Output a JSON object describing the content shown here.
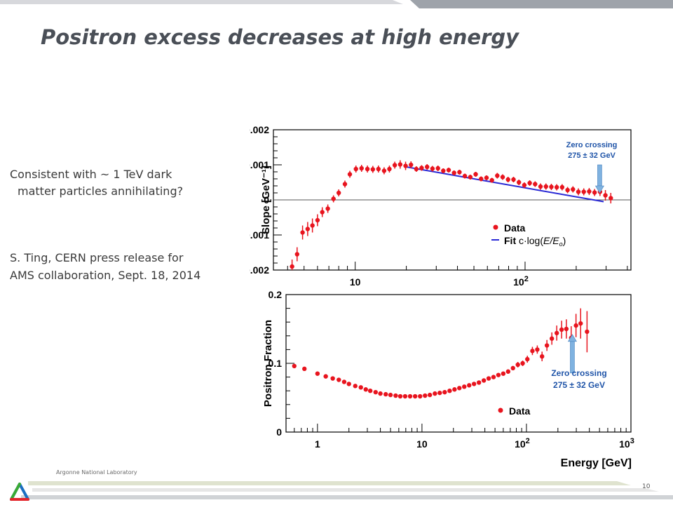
{
  "slide": {
    "title": "Positron excess decreases at high energy",
    "text_lines": [
      "Consistent with ~ 1 TeV dark",
      "matter particles annihilating?",
      "S. Ting, CERN press release for",
      "AMS collaboration, Sept. 18, 2014"
    ],
    "footer": "Argonne National Laboratory",
    "page_number": "10"
  },
  "colors": {
    "data": "#e8141e",
    "fit": "#2a2ad6",
    "arrow": "#7fb2e0",
    "annotation": "#1f54a8",
    "title": "#4a4f57"
  },
  "chart_data": [
    {
      "type": "scatter",
      "title": "",
      "xscale": "log",
      "xlim": [
        3.3,
        420
      ],
      "ylim": [
        -0.002,
        0.002
      ],
      "ylabel": "Slope [GeV⁻¹]",
      "yticks": [
        "0.002",
        "0.001",
        "0",
        "-0.001",
        "-0.002"
      ],
      "xticks": [
        "10",
        "10²"
      ],
      "grid": false,
      "zero_line": true,
      "legend": {
        "placement": "center-right",
        "entries": [
          "Data",
          "Fit c·log(E/E₀)"
        ]
      },
      "fit": {
        "x": [
          20,
          290
        ],
        "y": [
          0.00094,
          -5e-05
        ]
      },
      "annotation": {
        "text": [
          "Zero crossing",
          "275 ± 32 GeV"
        ],
        "arrow_to_x": 275,
        "arrow_to_y": 0.0002
      },
      "series": [
        {
          "name": "Data",
          "x": [
            4.25,
            4.55,
            4.9,
            5.25,
            5.6,
            6.0,
            6.4,
            6.9,
            7.45,
            8.0,
            8.7,
            9.3,
            10.1,
            10.9,
            11.8,
            12.7,
            13.7,
            14.8,
            15.9,
            17.1,
            18.4,
            19.8,
            21.3,
            22.9,
            24.6,
            26.5,
            28.5,
            30.7,
            33.0,
            35.5,
            38.2,
            41.1,
            44.2,
            47.6,
            51.2,
            55.1,
            59.3,
            63.8,
            68.6,
            73.8,
            79.4,
            85.5,
            92,
            99,
            106.5,
            114.6,
            123.3,
            132.7,
            142.8,
            153.6,
            165.3,
            177.9,
            191.4,
            206,
            221.6,
            238.5,
            256.6,
            276.1,
            297.1,
            319.7
          ],
          "y": [
            -0.0019,
            -0.00155,
            -0.00093,
            -0.00083,
            -0.00073,
            -0.00058,
            -0.00035,
            -0.00025,
            3e-05,
            0.0002,
            0.00045,
            0.00073,
            0.00088,
            0.0009,
            0.00088,
            0.00087,
            0.00088,
            0.00083,
            0.00088,
            0.00099,
            0.00101,
            0.00097,
            0.001,
            0.00088,
            0.00091,
            0.00094,
            0.00089,
            0.0009,
            0.00083,
            0.00085,
            0.00077,
            0.00079,
            0.00068,
            0.00065,
            0.00073,
            0.0006,
            0.00063,
            0.00056,
            0.00069,
            0.00065,
            0.00058,
            0.00058,
            0.0005,
            0.00042,
            0.00048,
            0.00045,
            0.00038,
            0.00038,
            0.00037,
            0.00036,
            0.00036,
            0.00028,
            0.0003,
            0.00023,
            0.00023,
            0.00024,
            0.00021,
            0.00023,
            0.00013,
            5e-05
          ],
          "yerr": [
            0.0002,
            0.0002,
            0.0002,
            0.0002,
            0.0002,
            0.00017,
            0.00014,
            0.00012,
            0.0001,
            0.0001,
            0.0001,
            0.0001,
            0.0001,
            0.0001,
            0.0001,
            0.0001,
            0.0001,
            0.0001,
            0.0001,
            0.0001,
            0.00012,
            0.00012,
            0.0001,
            8e-05,
            8e-05,
            8e-05,
            8e-05,
            8e-05,
            7e-05,
            7e-05,
            7e-05,
            7e-05,
            7e-05,
            7e-05,
            7e-05,
            7e-05,
            7e-05,
            7e-05,
            8e-05,
            8e-05,
            8e-05,
            8e-05,
            8e-05,
            8e-05,
            8e-05,
            8e-05,
            9e-05,
            9e-05,
            9e-05,
            9e-05,
            9e-05,
            9e-05,
            9e-05,
            0.0001,
            0.0001,
            0.0001,
            0.0001,
            0.00012,
            0.00015,
            0.00015
          ]
        }
      ]
    },
    {
      "type": "scatter",
      "title": "",
      "xscale": "log",
      "xlim": [
        0.5,
        1000
      ],
      "ylim": [
        0,
        0.2
      ],
      "xlabel": "Energy [GeV]",
      "ylabel": "Positron Fraction",
      "yticks": [
        "0.2",
        "0.1",
        "0"
      ],
      "xticks": [
        "1",
        "10",
        "10²",
        "10³"
      ],
      "grid": false,
      "legend": {
        "placement": "bottom-right",
        "entries": [
          "Data"
        ]
      },
      "annotation": {
        "text": [
          "Zero crossing",
          "275 ± 32 GeV"
        ],
        "arrow_to_x": 275,
        "arrow_to_y": 0.142
      },
      "series": [
        {
          "name": "Data",
          "x": [
            0.6,
            0.75,
            1.0,
            1.2,
            1.4,
            1.6,
            1.8,
            2.0,
            2.3,
            2.6,
            2.9,
            3.2,
            3.6,
            4.0,
            4.5,
            5.0,
            5.6,
            6.2,
            6.9,
            7.7,
            8.6,
            9.6,
            10.7,
            11.9,
            13.3,
            14.8,
            16.5,
            18.4,
            20.5,
            22.8,
            25.4,
            28.3,
            31.5,
            35.1,
            39.1,
            43.5,
            48.4,
            53.9,
            60,
            66.8,
            74.3,
            82.7,
            92,
            102,
            114,
            127,
            141,
            157,
            175,
            195,
            217,
            241,
            268,
            298,
            330,
            380
          ],
          "y": [
            0.096,
            0.092,
            0.085,
            0.081,
            0.078,
            0.076,
            0.073,
            0.07,
            0.067,
            0.065,
            0.062,
            0.06,
            0.058,
            0.056,
            0.055,
            0.054,
            0.053,
            0.052,
            0.052,
            0.052,
            0.052,
            0.052,
            0.053,
            0.054,
            0.056,
            0.057,
            0.058,
            0.06,
            0.062,
            0.064,
            0.066,
            0.068,
            0.07,
            0.072,
            0.075,
            0.078,
            0.08,
            0.083,
            0.085,
            0.088,
            0.093,
            0.098,
            0.1,
            0.106,
            0.118,
            0.12,
            0.11,
            0.126,
            0.136,
            0.144,
            0.149,
            0.15,
            0.137,
            0.155,
            0.158,
            0.146
          ],
          "yerr": [
            0.003,
            0.002,
            0.002,
            0.002,
            0.002,
            0.002,
            0.002,
            0.002,
            0.002,
            0.002,
            0.002,
            0.002,
            0.002,
            0.002,
            0.002,
            0.002,
            0.002,
            0.002,
            0.002,
            0.002,
            0.002,
            0.002,
            0.002,
            0.002,
            0.002,
            0.002,
            0.002,
            0.002,
            0.002,
            0.002,
            0.002,
            0.002,
            0.002,
            0.002,
            0.002,
            0.002,
            0.002,
            0.002,
            0.003,
            0.003,
            0.003,
            0.004,
            0.004,
            0.005,
            0.006,
            0.006,
            0.007,
            0.008,
            0.009,
            0.011,
            0.013,
            0.014,
            0.017,
            0.017,
            0.022,
            0.03
          ]
        }
      ]
    }
  ]
}
